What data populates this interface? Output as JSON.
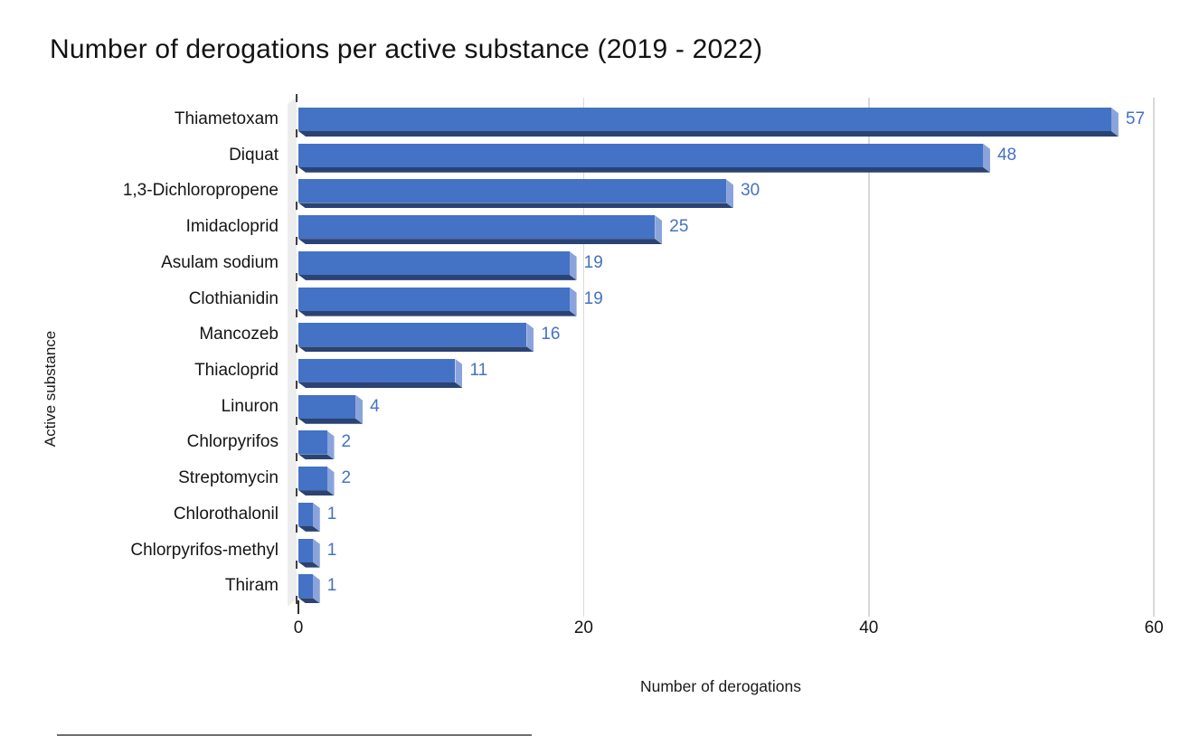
{
  "chart_data": {
    "type": "bar",
    "orientation": "horizontal",
    "title": "Number of derogations per active substance (2019 - 2022)",
    "xlabel": "Number of derogations",
    "ylabel": "Active substance",
    "xlim": [
      0,
      60
    ],
    "xticks": [
      0,
      20,
      40,
      60
    ],
    "grid": true,
    "legend": false,
    "data_labels": true,
    "categories": [
      "Thiametoxam",
      "Diquat",
      "1,3-Dichloropropene",
      "Imidacloprid",
      "Asulam sodium",
      "Clothianidin",
      "Mancozeb",
      "Thiacloprid",
      "Linuron",
      "Chlorpyrifos",
      "Streptomycin",
      "Chlorothalonil",
      "Chlorpyrifos-methyl",
      "Thiram"
    ],
    "values": [
      57,
      48,
      30,
      25,
      19,
      19,
      16,
      11,
      4,
      2,
      2,
      1,
      1,
      1
    ],
    "colors": {
      "bar_front": "#4472C4",
      "bar_side": "#8AA4DB",
      "bar_bottom": "#2B4372",
      "value_label": "#4472C4",
      "gridline": "#D9D9D9",
      "wall": "#EDEDED",
      "tick": "#404040"
    }
  }
}
